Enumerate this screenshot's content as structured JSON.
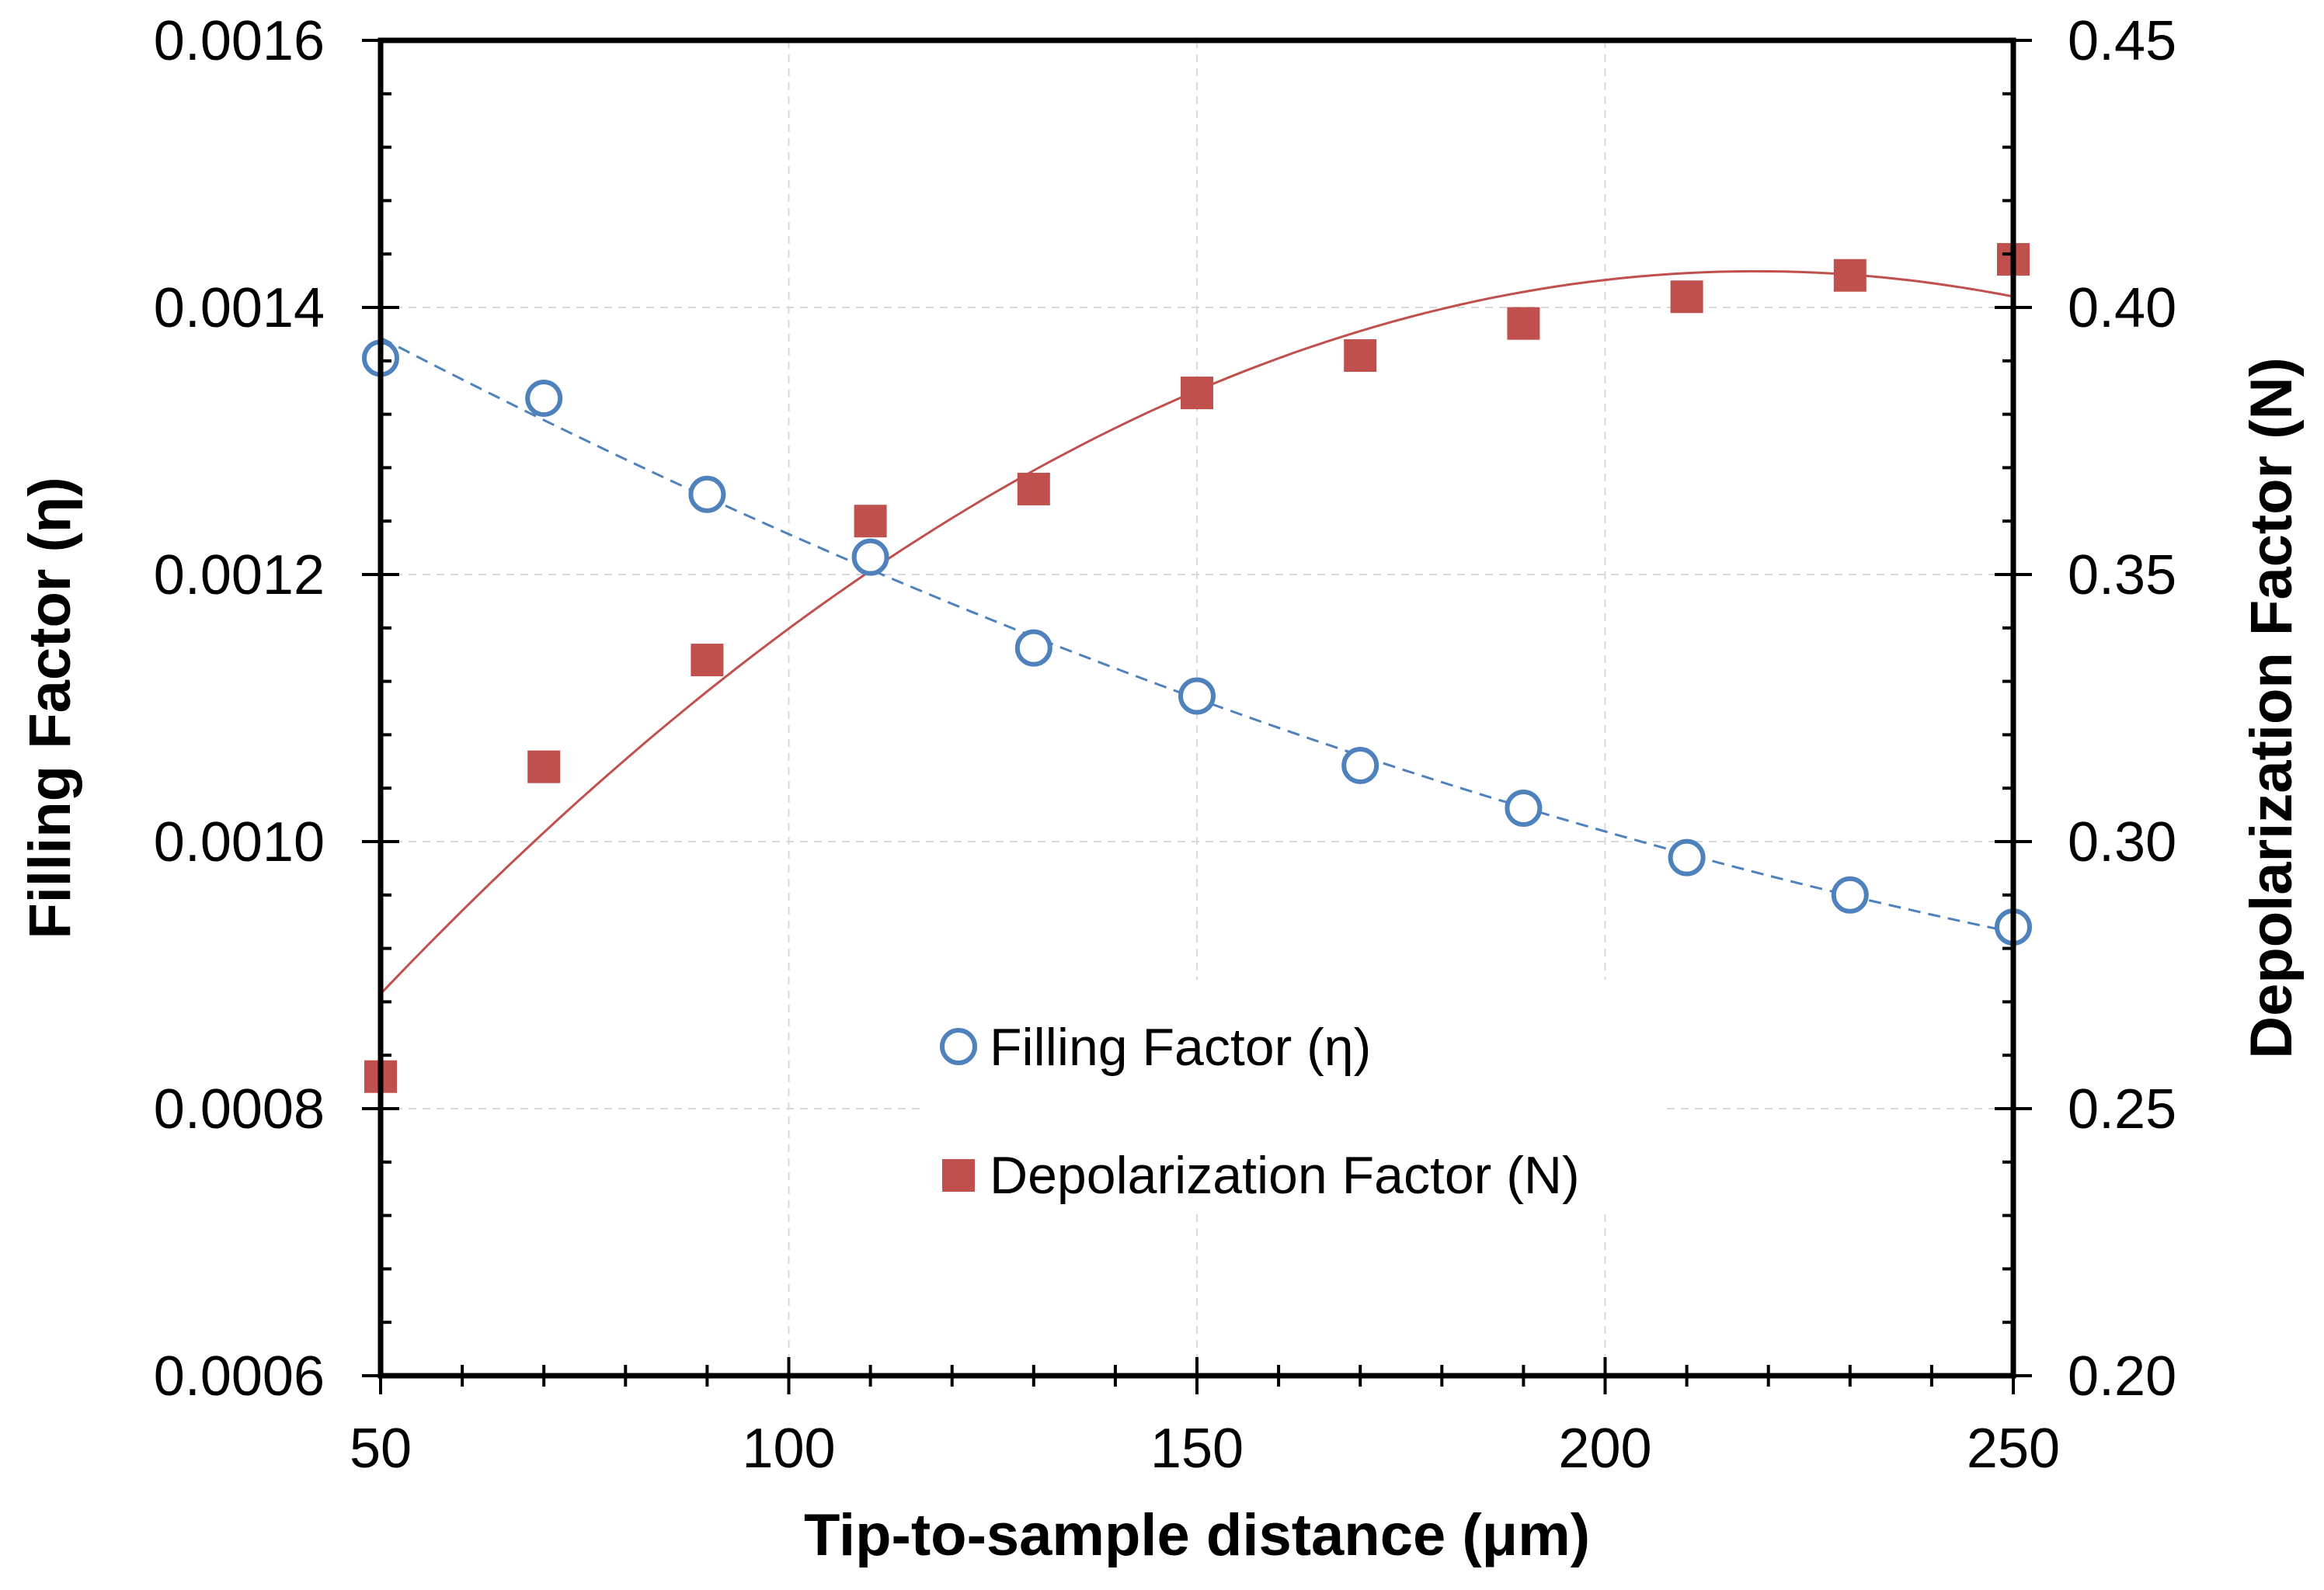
{
  "chart_data": {
    "type": "scatter",
    "title": "",
    "xlabel": "Tip-to-sample distance (μm)",
    "ylabel_left": "Filling Factor (η)",
    "ylabel_right": "Depolarization Factor (N)",
    "xlim": [
      50,
      250
    ],
    "x_ticks": [
      "50",
      "100",
      "150",
      "200",
      "250"
    ],
    "x_tick_values": [
      50,
      100,
      150,
      200,
      250
    ],
    "ylim_left": [
      0.0006,
      0.0016
    ],
    "y_left_ticks": [
      "0.0006",
      "0.0008",
      "0.0010",
      "0.0012",
      "0.0014",
      "0.0016"
    ],
    "y_left_tick_values": [
      0.0006,
      0.0008,
      0.001,
      0.0012,
      0.0014,
      0.0016
    ],
    "ylim_right": [
      0.2,
      0.45
    ],
    "y_right_ticks": [
      "0.20",
      "0.25",
      "0.30",
      "0.35",
      "0.40",
      "0.45"
    ],
    "y_right_tick_values": [
      0.2,
      0.25,
      0.3,
      0.35,
      0.4,
      0.45
    ],
    "grid": true,
    "legend_position": "center-bottom",
    "series": [
      {
        "name": "Filling Factor (η)",
        "axis": "left",
        "marker": "open-circle",
        "color": "#4f81bd",
        "trendline": "dashed",
        "x": [
          50,
          70,
          90,
          110,
          130,
          150,
          170,
          190,
          210,
          230,
          250
        ],
        "values": [
          0.001362,
          0.001332,
          0.00126,
          0.001213,
          0.001145,
          0.001109,
          0.001057,
          0.001025,
          0.000988,
          0.00096,
          0.000936
        ]
      },
      {
        "name": "Depolarization Factor (N)",
        "axis": "right",
        "marker": "filled-square",
        "color": "#c0504d",
        "trendline": "solid",
        "x": [
          50,
          70,
          90,
          110,
          130,
          150,
          170,
          190,
          210,
          230,
          250
        ],
        "values": [
          0.256,
          0.314,
          0.334,
          0.36,
          0.366,
          0.384,
          0.391,
          0.397,
          0.402,
          0.406,
          0.409
        ]
      }
    ]
  }
}
